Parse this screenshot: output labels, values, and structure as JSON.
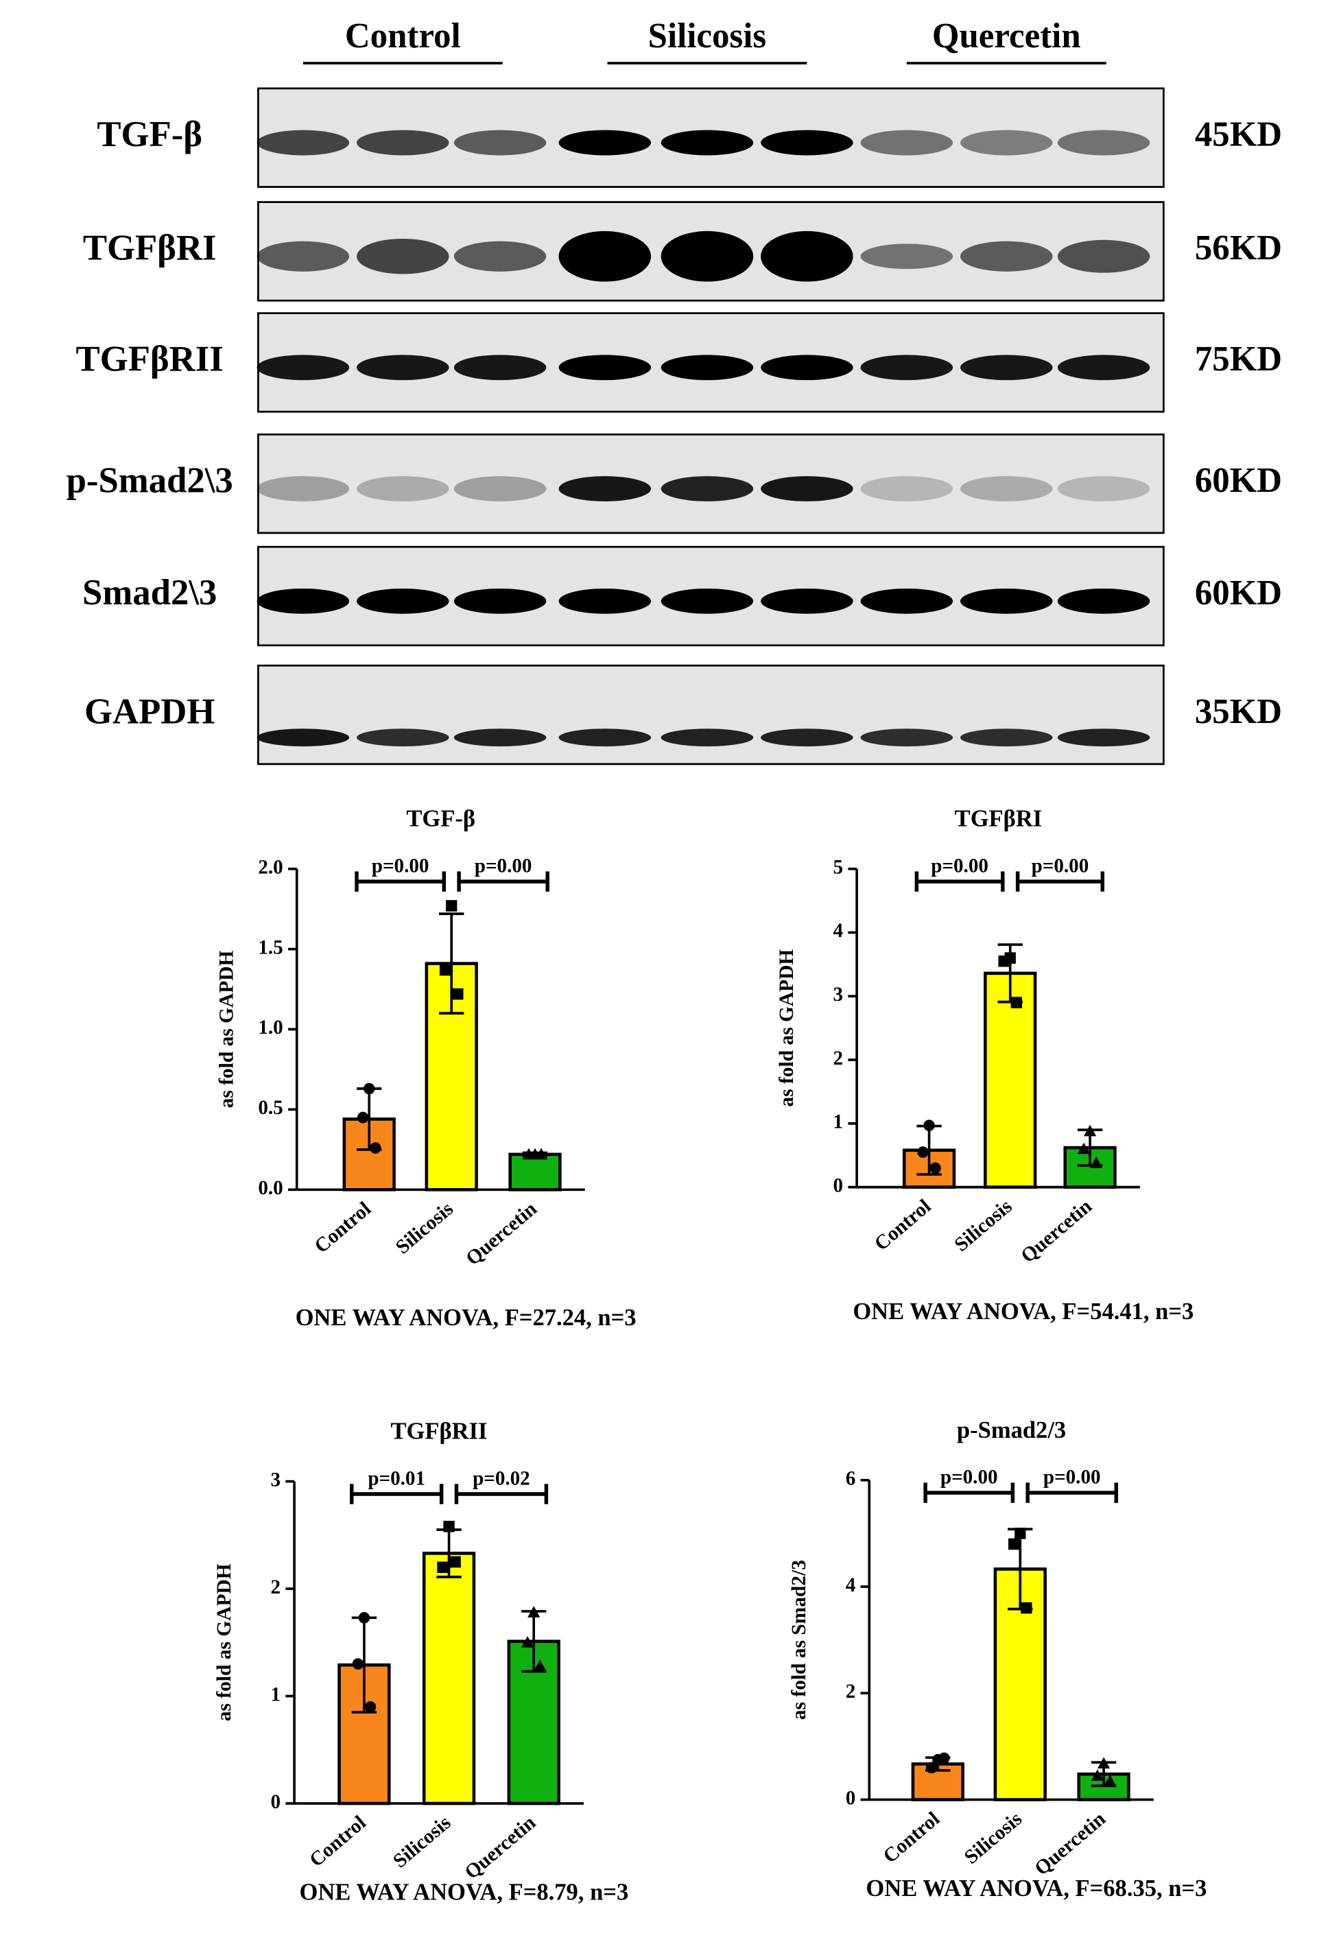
{
  "blot": {
    "groups": [
      "Control",
      "Silicosis",
      "Quercetin"
    ],
    "rows": [
      {
        "protein": "TGF-β",
        "size": "45KD"
      },
      {
        "protein": "TGFβRI",
        "size": "56KD"
      },
      {
        "protein": "TGFβRII",
        "size": "75KD"
      },
      {
        "protein": "p-Smad2\\3",
        "size": "60KD"
      },
      {
        "protein": "Smad2\\3",
        "size": "60KD"
      },
      {
        "protein": "GAPDH",
        "size": "35KD"
      }
    ]
  },
  "chart_data": [
    {
      "type": "bar",
      "title": "TGF-β",
      "y_label": "as fold as GAPDH",
      "categories": [
        "Control",
        "Silicosis",
        "Quercetin"
      ],
      "colors": [
        "#f7861c",
        "#ffff00",
        "#10b010"
      ],
      "values": [
        0.44,
        1.41,
        0.22
      ],
      "errors": [
        0.19,
        0.31,
        0.01
      ],
      "points": [
        [
          0.63,
          0.45,
          0.26
        ],
        [
          1.77,
          1.37,
          1.22
        ],
        [
          0.22,
          0.22,
          0.22
        ]
      ],
      "ylim": [
        0,
        2
      ],
      "yticks": [
        {
          "value": 0,
          "label": "0.0"
        },
        {
          "value": 0.5,
          "label": "0.5"
        },
        {
          "value": 1,
          "label": "1.0"
        },
        {
          "value": 1.5,
          "label": "1.5"
        },
        {
          "value": 2,
          "label": "2.0"
        }
      ],
      "annotations": [
        "p=0.00",
        "p=0.00"
      ],
      "footer": "ONE WAY ANOVA, F=27.24, n=3"
    },
    {
      "type": "bar",
      "title": "TGFβRI",
      "y_label": "as fold as GAPDH",
      "categories": [
        "Control",
        "Silicosis",
        "Quercetin"
      ],
      "colors": [
        "#f7861c",
        "#ffff00",
        "#10b010"
      ],
      "values": [
        0.58,
        3.36,
        0.62
      ],
      "errors": [
        0.38,
        0.45,
        0.28
      ],
      "points": [
        [
          0.97,
          0.55,
          0.3
        ],
        [
          3.6,
          3.55,
          2.9
        ],
        [
          0.88,
          0.6,
          0.38
        ]
      ],
      "ylim": [
        0,
        5
      ],
      "yticks": [
        0,
        1,
        2,
        3,
        4,
        5
      ],
      "annotations": [
        "p=0.00",
        "p=0.00"
      ],
      "footer": "ONE WAY ANOVA, F=54.41, n=3"
    },
    {
      "type": "bar",
      "title": "TGFβRII",
      "y_label": "as fold as GAPDH",
      "categories": [
        "Control",
        "Silicosis",
        "Quercetin"
      ],
      "colors": [
        "#f7861c",
        "#ffff00",
        "#10b010"
      ],
      "values": [
        1.29,
        2.33,
        1.51
      ],
      "errors": [
        0.44,
        0.22,
        0.28
      ],
      "points": [
        [
          1.73,
          1.3,
          0.9
        ],
        [
          2.58,
          2.2,
          2.25
        ],
        [
          1.78,
          1.5,
          1.28
        ]
      ],
      "ylim": [
        0,
        3
      ],
      "yticks": [
        0,
        1,
        2,
        3
      ],
      "annotations": [
        "p=0.01",
        "p=0.02"
      ],
      "footer": "ONE WAY ANOVA, F=8.79, n=3"
    },
    {
      "type": "bar",
      "title": "p-Smad2/3",
      "y_label": "as fold as Smad2/3",
      "categories": [
        "Control",
        "Silicosis",
        "Quercetin"
      ],
      "colors": [
        "#f7861c",
        "#ffff00",
        "#10b010"
      ],
      "values": [
        0.67,
        4.33,
        0.48
      ],
      "errors": [
        0.12,
        0.75,
        0.22
      ],
      "points": [
        [
          0.75,
          0.6,
          0.78
        ],
        [
          5.0,
          4.8,
          3.6
        ],
        [
          0.68,
          0.45,
          0.35
        ]
      ],
      "ylim": [
        0,
        6
      ],
      "yticks": [
        0,
        2,
        4,
        6
      ],
      "annotations": [
        "p=0.00",
        "p=0.00"
      ],
      "footer": "ONE WAY ANOVA, F=68.35, n=3"
    }
  ]
}
